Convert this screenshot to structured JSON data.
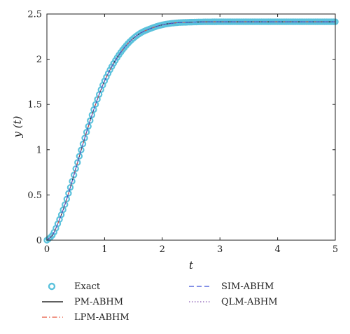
{
  "chart_data": {
    "type": "line",
    "xlabel": "t",
    "ylabel": "y (t)",
    "xlim": [
      0,
      5
    ],
    "ylim": [
      0,
      2.5
    ],
    "xticks": [
      "0",
      "1",
      "2",
      "3",
      "4",
      "5"
    ],
    "yticks": [
      "0",
      "0.5",
      "1",
      "1.5",
      "2",
      "2.5"
    ],
    "grid": false,
    "legend_position": "bottom",
    "x": [
      0,
      0.1,
      0.2,
      0.3,
      0.4,
      0.5,
      0.6,
      0.7,
      0.8,
      0.9,
      1.0,
      1.2,
      1.4,
      1.6,
      1.8,
      2.0,
      2.2,
      2.5,
      3.0,
      3.5,
      4.0,
      4.5,
      5.0
    ],
    "series": [
      {
        "name": "Exact",
        "style": "circles",
        "color": "#5bc2dc",
        "values": [
          0,
          0.06,
          0.2,
          0.37,
          0.57,
          0.79,
          1.01,
          1.22,
          1.42,
          1.6,
          1.76,
          2.0,
          2.17,
          2.28,
          2.34,
          2.38,
          2.4,
          2.41,
          2.414,
          2.414,
          2.414,
          2.414,
          2.414
        ]
      },
      {
        "name": "PM-ABHM",
        "style": "solid",
        "color": "#000000",
        "values": [
          0,
          0.06,
          0.2,
          0.37,
          0.57,
          0.79,
          1.01,
          1.22,
          1.42,
          1.6,
          1.76,
          2.0,
          2.17,
          2.28,
          2.34,
          2.38,
          2.4,
          2.41,
          2.414,
          2.414,
          2.414,
          2.414,
          2.414
        ]
      },
      {
        "name": "LPM-ABHM",
        "style": "dashdot",
        "color": "#e8553a",
        "values": [
          0,
          0.06,
          0.2,
          0.37,
          0.57,
          0.79,
          1.01,
          1.22,
          1.42,
          1.6,
          1.76,
          2.0,
          2.17,
          2.28,
          2.34,
          2.38,
          2.4,
          2.41,
          2.414,
          2.414,
          2.414,
          2.414,
          2.414
        ]
      },
      {
        "name": "SIM-ABHM",
        "style": "dashed",
        "color": "#3a4fd6",
        "values": [
          0,
          0.06,
          0.2,
          0.37,
          0.57,
          0.79,
          1.01,
          1.22,
          1.42,
          1.6,
          1.76,
          2.0,
          2.17,
          2.28,
          2.34,
          2.38,
          2.4,
          2.41,
          2.414,
          2.414,
          2.414,
          2.414,
          2.414
        ]
      },
      {
        "name": "QLM-ABHM",
        "style": "dotted",
        "color": "#8a5bb5",
        "values": [
          0,
          0.06,
          0.2,
          0.37,
          0.57,
          0.79,
          1.01,
          1.22,
          1.42,
          1.6,
          1.76,
          2.0,
          2.17,
          2.28,
          2.34,
          2.38,
          2.4,
          2.41,
          2.414,
          2.414,
          2.414,
          2.414,
          2.414
        ]
      }
    ]
  }
}
